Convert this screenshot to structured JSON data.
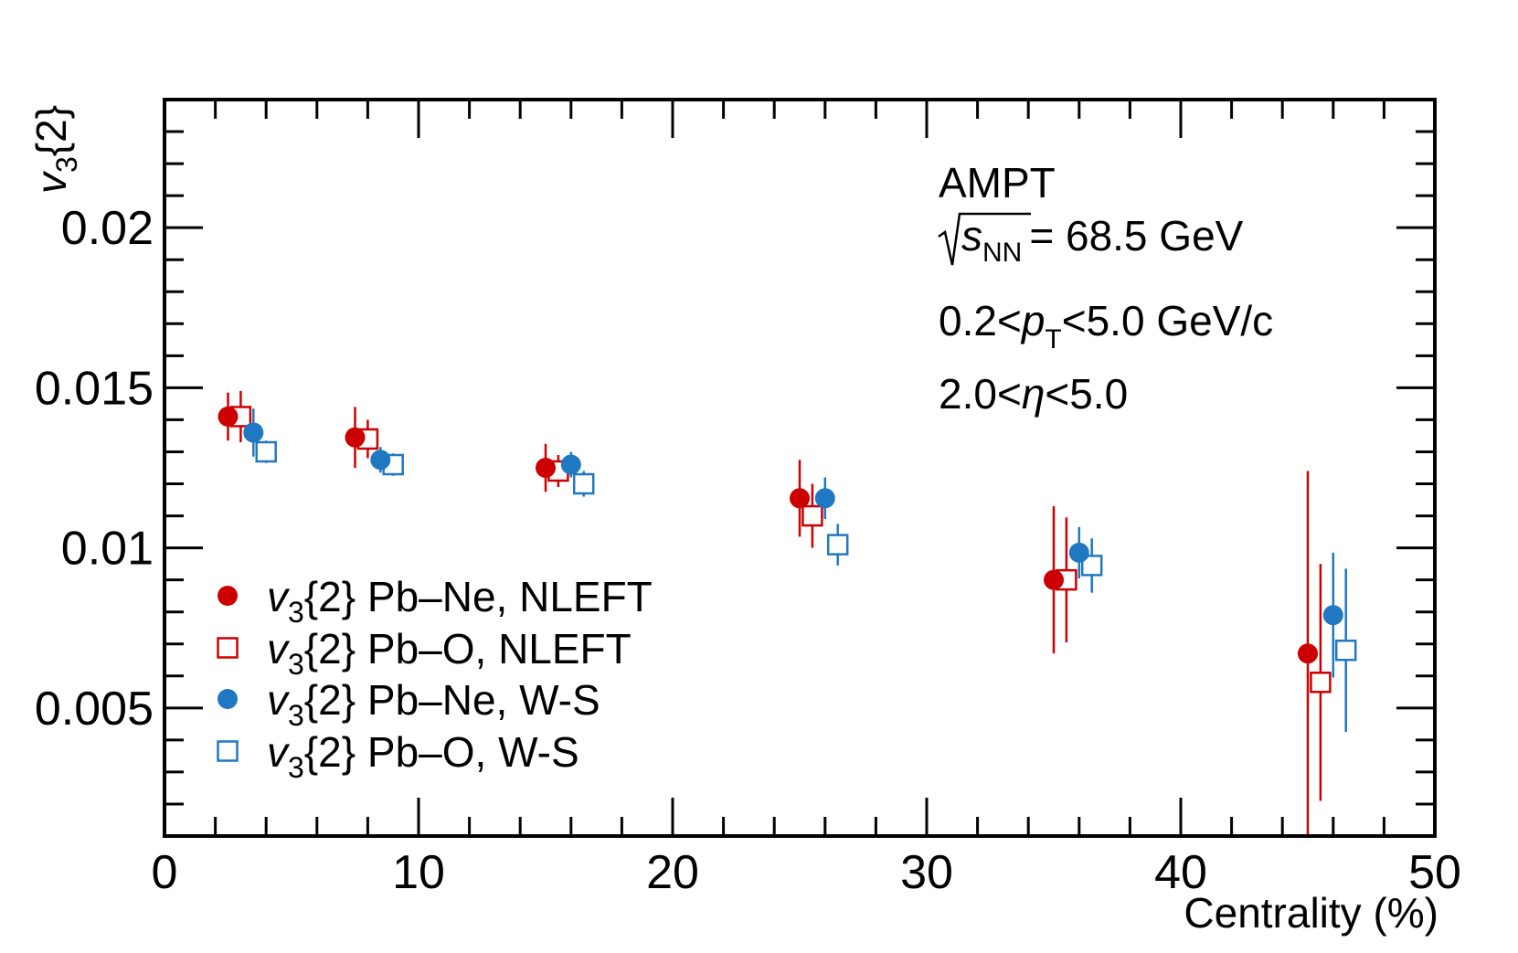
{
  "chart_data": {
    "type": "scatter",
    "title": "",
    "xlabel": "Centrality (%)",
    "ylabel": "v_3{2}",
    "xlim": [
      0,
      50
    ],
    "ylim": [
      0.001,
      0.024
    ],
    "x_ticks": [
      "0",
      "10",
      "20",
      "30",
      "40",
      "50"
    ],
    "y_ticks": [
      "0.005",
      "0.01",
      "0.015",
      "0.02"
    ],
    "annotations": {
      "model": "AMPT",
      "energy_value": "= 68.5 GeV",
      "energy_sub": "NN",
      "pt_range": [
        "0.2<",
        "<5.0 GeV/c"
      ],
      "eta_range": [
        "2.0<",
        "<5.0"
      ]
    },
    "series": [
      {
        "name": "v3{2} Pb–Ne, NLEFT",
        "label_text": "{2} Pb–Ne, NLEFT",
        "marker": "circle",
        "color": "#cc0000",
        "x": [
          2.5,
          7.5,
          15,
          25,
          35,
          45
        ],
        "y": [
          0.0141,
          0.01345,
          0.0125,
          0.01155,
          0.009,
          0.0067
        ],
        "err": [
          0.00075,
          0.00095,
          0.00075,
          0.0012,
          0.0023,
          0.0057
        ]
      },
      {
        "name": "v3{2} Pb–O, NLEFT",
        "label_text": "{2} Pb–O, NLEFT",
        "marker": "open-square",
        "color": "#cc0000",
        "x": [
          3.0,
          8.0,
          15.5,
          25.5,
          35.5,
          45.5
        ],
        "y": [
          0.0141,
          0.0134,
          0.0124,
          0.011,
          0.009,
          0.0058
        ],
        "err": [
          0.0008,
          0.0006,
          0.0005,
          0.001,
          0.00195,
          0.0037
        ]
      },
      {
        "name": "v3{2} Pb–Ne, W-S",
        "label_text": "{2} Pb–Ne, W-S",
        "marker": "circle",
        "color": "#1f78c1",
        "x": [
          3.5,
          8.5,
          16,
          26,
          36,
          46
        ],
        "y": [
          0.0136,
          0.01275,
          0.0126,
          0.01155,
          0.00985,
          0.0079
        ],
        "err": [
          0.00075,
          0.0004,
          0.0004,
          0.00065,
          0.0008,
          0.00195
        ]
      },
      {
        "name": "v3{2} Pb–O, W-S",
        "label_text": "{2} Pb–O, W-S",
        "marker": "open-square",
        "color": "#1f78c1",
        "x": [
          4.0,
          9.0,
          16.5,
          26.5,
          36.5,
          46.5
        ],
        "y": [
          0.013,
          0.0126,
          0.012,
          0.0101,
          0.00945,
          0.0068
        ],
        "err": [
          0.00035,
          0.00035,
          0.0004,
          0.00065,
          0.00085,
          0.00255
        ]
      }
    ]
  }
}
